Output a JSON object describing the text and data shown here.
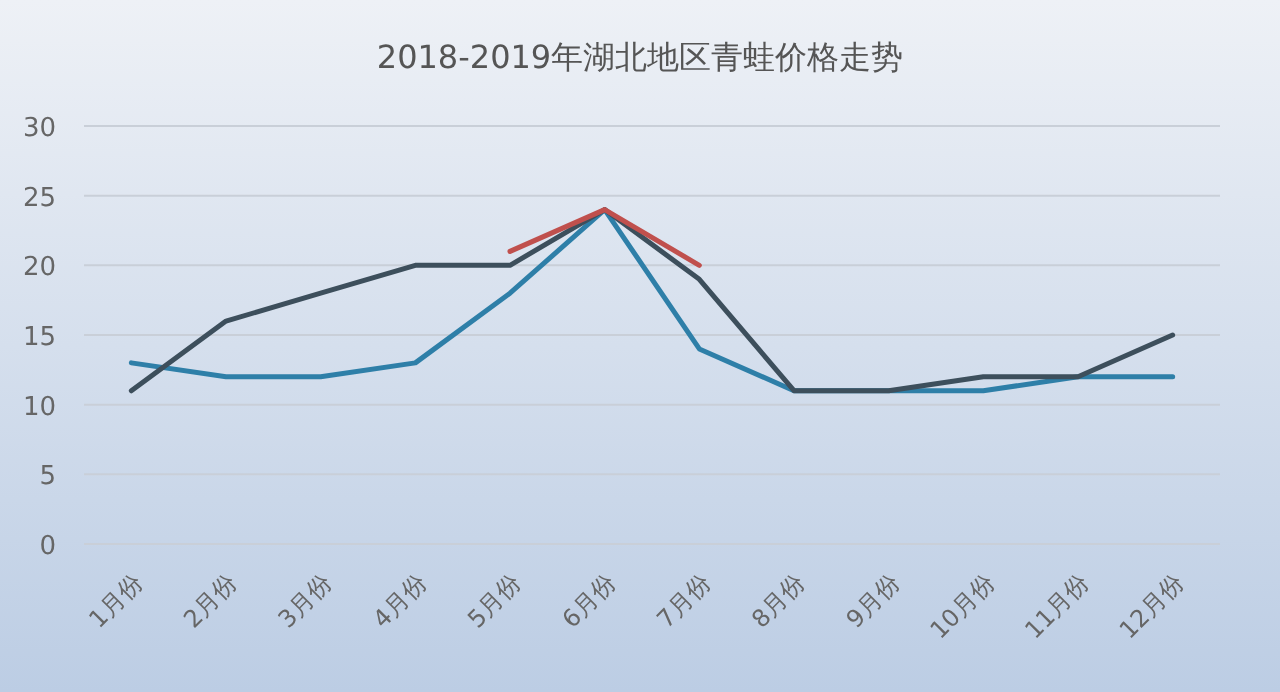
{
  "chart_data": {
    "type": "line",
    "title": "2018-2019年湖北地区青蛙价格走势",
    "categories": [
      "1月份",
      "2月份",
      "3月份",
      "4月份",
      "5月份",
      "6月份",
      "7月份",
      "8月份",
      "9月份",
      "10月份",
      "11月份",
      "12月份"
    ],
    "series": [
      {
        "color": "#2e7fa8",
        "values": [
          13,
          12,
          12,
          13,
          18,
          24,
          14,
          11,
          11,
          11,
          12,
          12
        ]
      },
      {
        "color": "#3d4f5c",
        "values": [
          11,
          16,
          18,
          20,
          20,
          24,
          19,
          11,
          11,
          12,
          12,
          15
        ]
      },
      {
        "color": "#c0504d",
        "values": [
          null,
          null,
          null,
          null,
          21,
          24,
          20,
          null,
          null,
          null,
          null,
          null
        ]
      }
    ],
    "ylim": [
      0,
      30
    ],
    "yticks": [
      0,
      5,
      10,
      15,
      20,
      25,
      30
    ],
    "grid": "y",
    "marker": "none",
    "line_style": "solid"
  }
}
